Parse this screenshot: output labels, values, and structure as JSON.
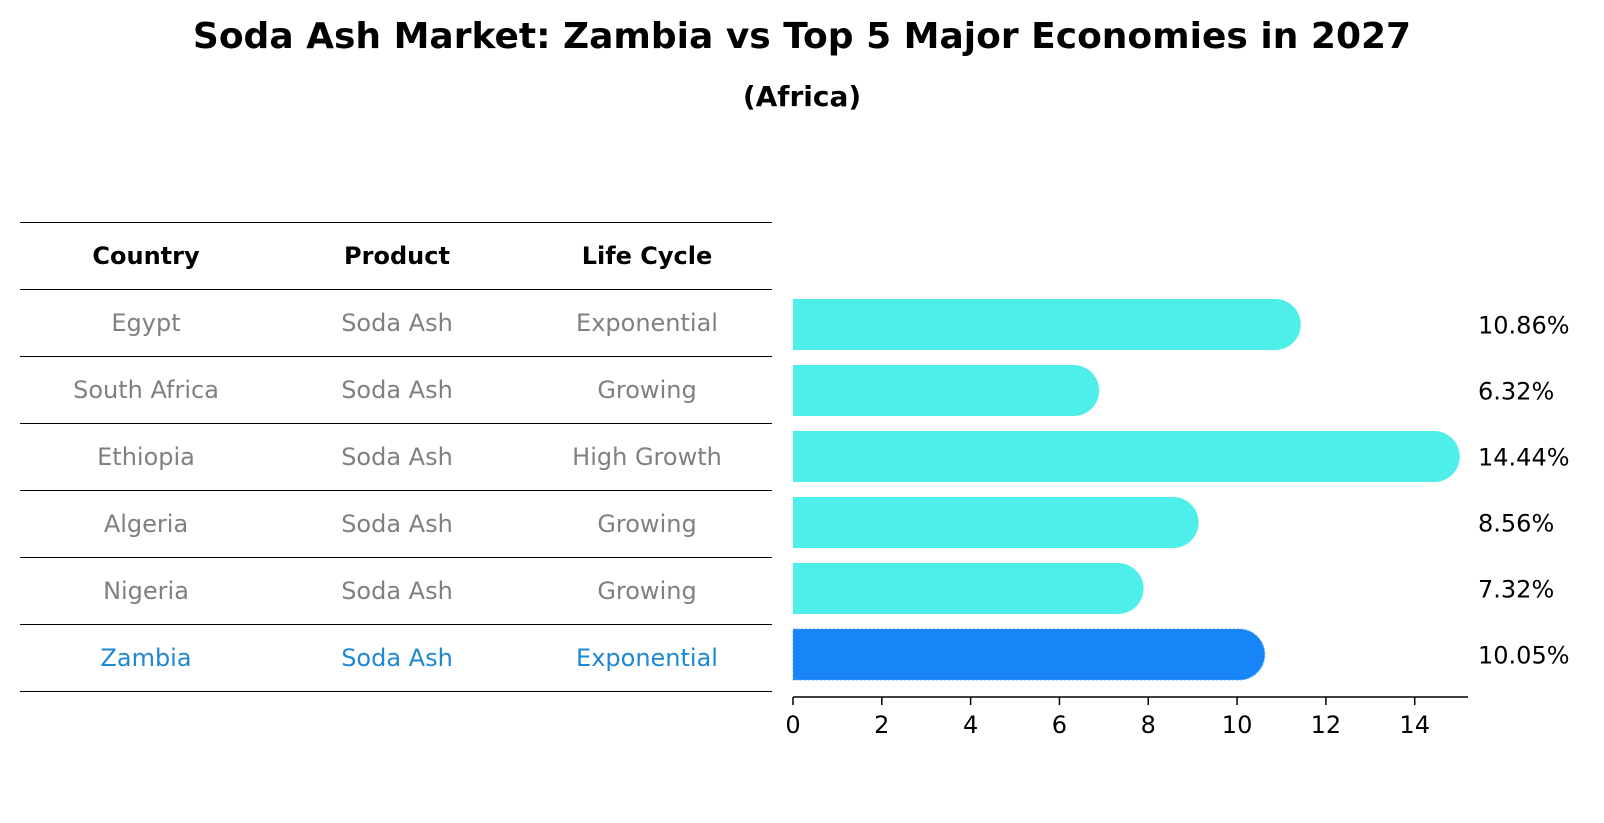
{
  "title": "Soda Ash Market: Zambia vs Top 5 Major Economies in 2027",
  "subtitle": "(Africa)",
  "table": {
    "headers": [
      "Country",
      "Product",
      "Life Cycle"
    ],
    "rows": [
      {
        "country": "Egypt",
        "product": "Soda Ash",
        "life_cycle": "Exponential"
      },
      {
        "country": "South Africa",
        "product": "Soda Ash",
        "life_cycle": "Growing"
      },
      {
        "country": "Ethiopia",
        "product": "Soda Ash",
        "life_cycle": "High Growth"
      },
      {
        "country": "Algeria",
        "product": "Soda Ash",
        "life_cycle": "Growing"
      },
      {
        "country": "Nigeria",
        "product": "Soda Ash",
        "life_cycle": "Growing"
      },
      {
        "country": "Zambia",
        "product": "Soda Ash",
        "life_cycle": "Exponential"
      }
    ],
    "highlight_color": "#1f88d2",
    "text_color": "#808080"
  },
  "chart_data": {
    "type": "bar",
    "orientation": "horizontal",
    "categories": [
      "Egypt",
      "South Africa",
      "Ethiopia",
      "Algeria",
      "Nigeria",
      "Zambia"
    ],
    "values": [
      10.86,
      6.32,
      14.44,
      8.56,
      7.32,
      10.05
    ],
    "value_labels": [
      "10.86%",
      "6.32%",
      "14.44%",
      "8.56%",
      "7.32%",
      "10.05%"
    ],
    "xlim": [
      0,
      15.2
    ],
    "xticks": [
      "0",
      "2",
      "4",
      "6",
      "8",
      "10",
      "12",
      "14"
    ],
    "highlight": "Zambia",
    "colors": {
      "bar": "#4eeeeb",
      "highlight": "#1785f7"
    },
    "grid": false
  }
}
